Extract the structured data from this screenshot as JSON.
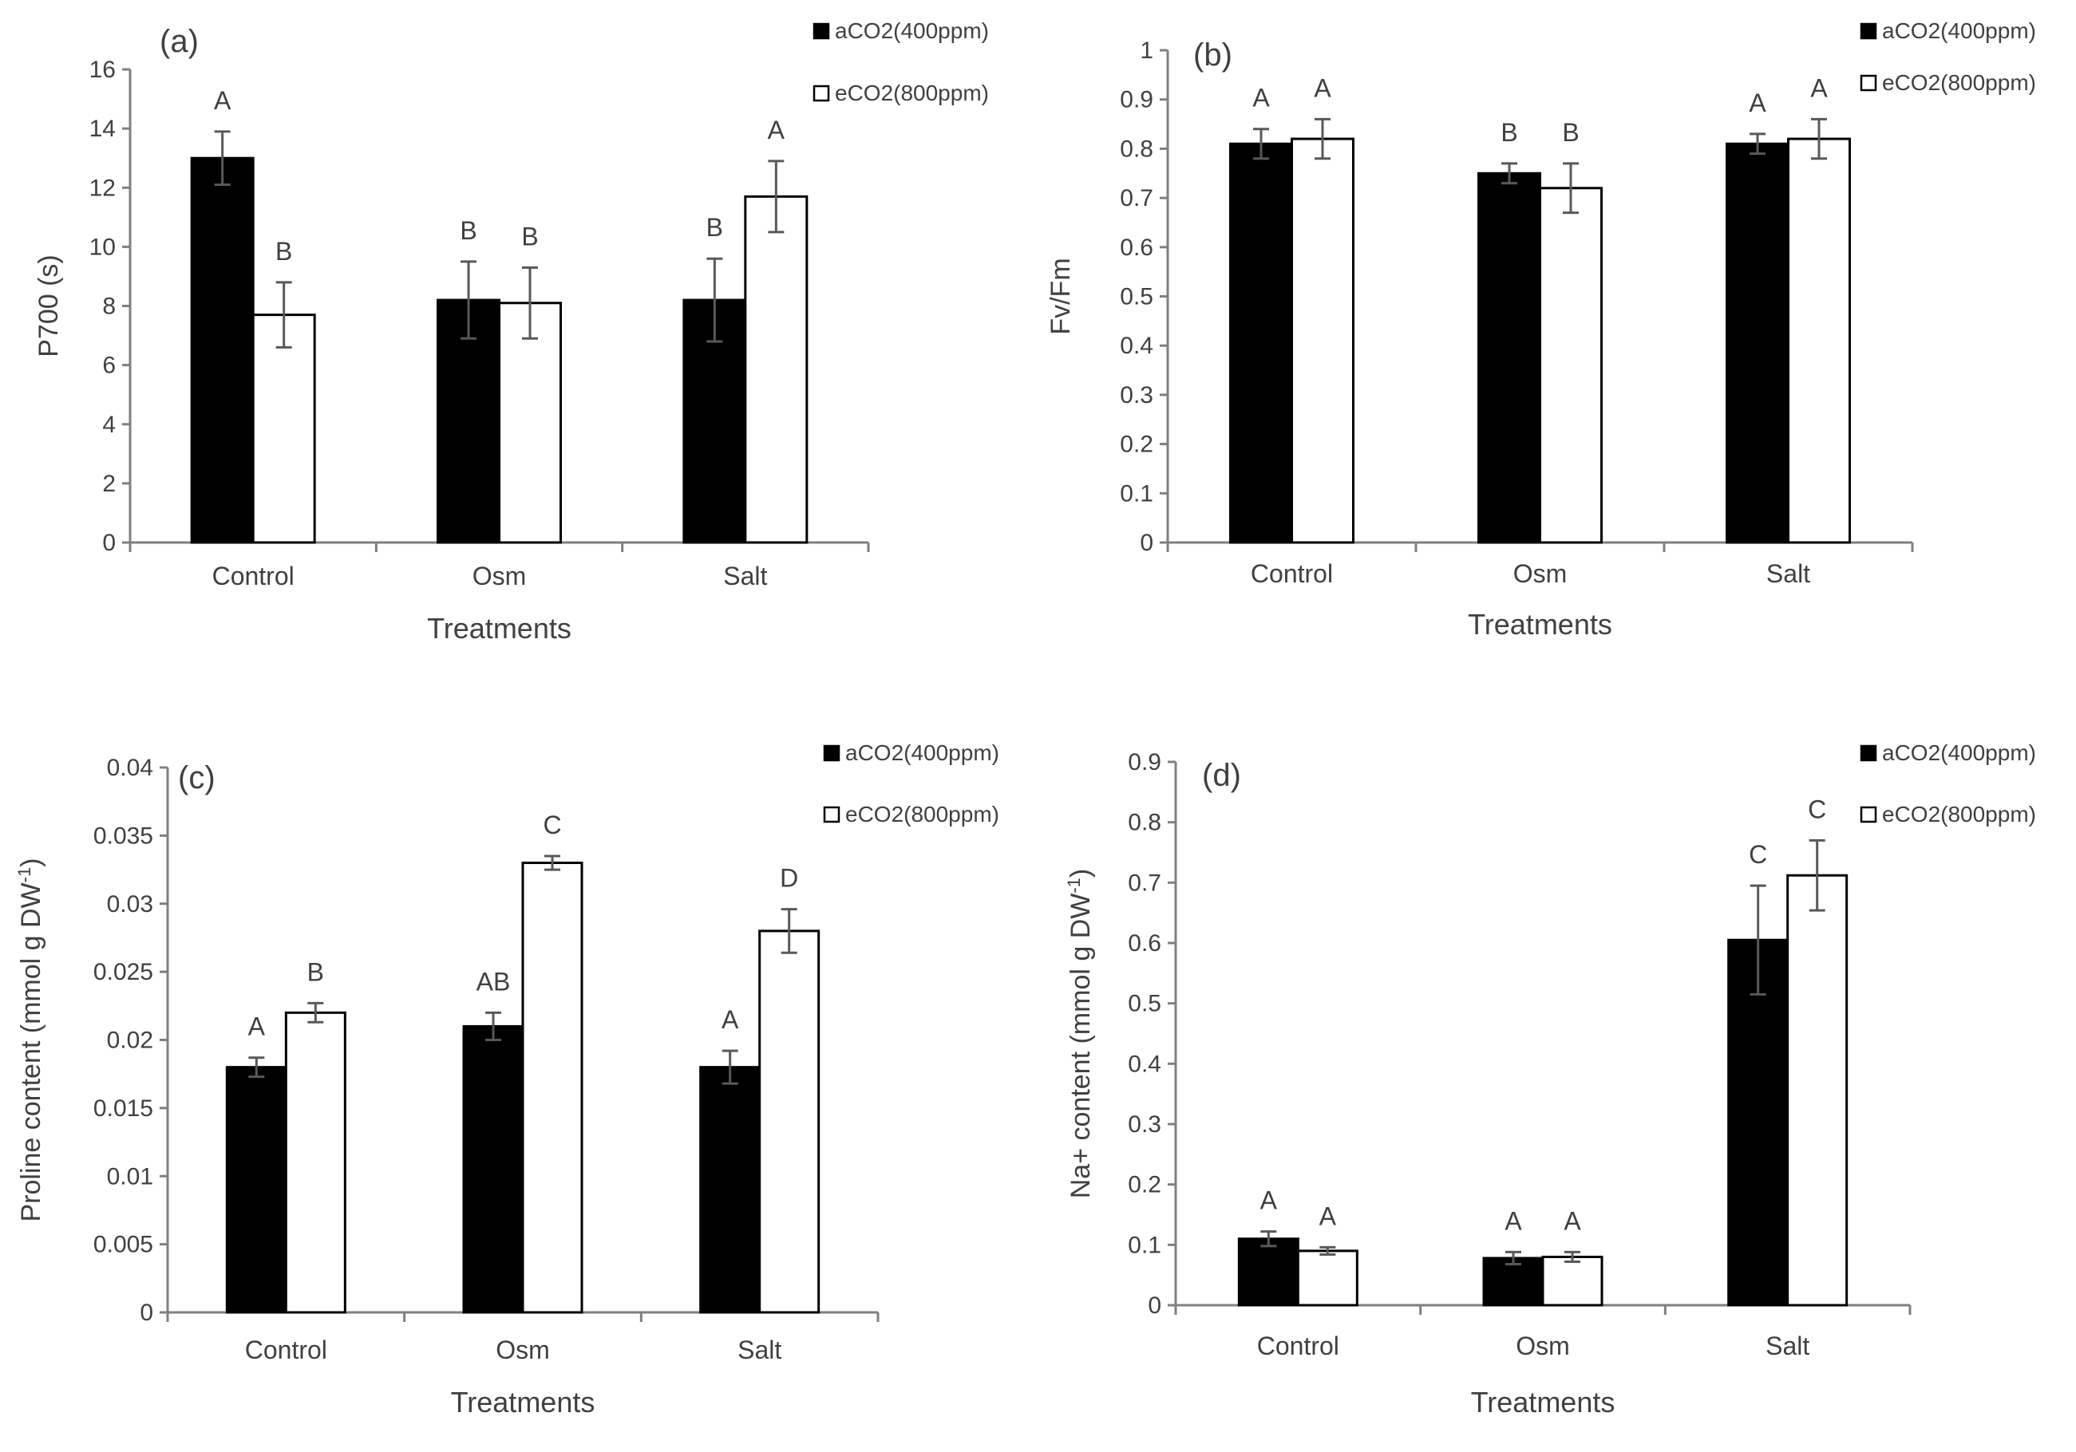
{
  "chart_data": [
    {
      "type": "bar",
      "panel_label": "(a)",
      "categories": [
        "Control",
        "Osm",
        "Salt"
      ],
      "series": [
        {
          "name": "aCO2(400ppm)",
          "color": "#000000",
          "values": [
            13.0,
            8.2,
            8.2
          ],
          "errors": [
            0.9,
            1.3,
            1.4
          ],
          "letters": [
            "A",
            "B",
            "B"
          ]
        },
        {
          "name": "eCO2(800ppm)",
          "color": "#ffffff",
          "values": [
            7.7,
            8.1,
            11.7
          ],
          "errors": [
            1.1,
            1.2,
            1.2
          ],
          "letters": [
            "B",
            "B",
            "A"
          ]
        }
      ],
      "ylabel": "P700 (s)",
      "xlabel": "Treatments",
      "ylim": [
        0,
        16
      ],
      "yticks": [
        "0",
        "2",
        "4",
        "6",
        "8",
        "10",
        "12",
        "14",
        "16"
      ],
      "legend_position": "top-right"
    },
    {
      "type": "bar",
      "panel_label": "(b)",
      "categories": [
        "Control",
        "Osm",
        "Salt"
      ],
      "series": [
        {
          "name": "aCO2(400ppm)",
          "color": "#000000",
          "values": [
            0.81,
            0.75,
            0.81
          ],
          "errors": [
            0.03,
            0.02,
            0.02
          ],
          "letters": [
            "A",
            "B",
            "A"
          ]
        },
        {
          "name": "eCO2(800ppm)",
          "color": "#ffffff",
          "values": [
            0.82,
            0.72,
            0.82
          ],
          "errors": [
            0.04,
            0.05,
            0.04
          ],
          "letters": [
            "A",
            "B",
            "A"
          ]
        }
      ],
      "ylabel": "Fv/Fm",
      "xlabel": "Treatments",
      "ylim": [
        0,
        1
      ],
      "yticks": [
        "0",
        "0.1",
        "0.2",
        "0.3",
        "0.4",
        "0.5",
        "0.6",
        "0.7",
        "0.8",
        "0.9",
        "1"
      ],
      "legend_position": "top-right"
    },
    {
      "type": "bar",
      "panel_label": "(c)",
      "categories": [
        "Control",
        "Osm",
        "Salt"
      ],
      "series": [
        {
          "name": "aCO2(400ppm)",
          "color": "#000000",
          "values": [
            0.018,
            0.021,
            0.018
          ],
          "errors": [
            0.0007,
            0.001,
            0.0012
          ],
          "letters": [
            "A",
            "AB",
            "A"
          ]
        },
        {
          "name": "eCO2(800ppm)",
          "color": "#ffffff",
          "values": [
            0.022,
            0.033,
            0.028
          ],
          "errors": [
            0.0007,
            0.0005,
            0.0016
          ],
          "letters": [
            "B",
            "C",
            "D"
          ]
        }
      ],
      "ylabel": "Proline content (mmol g DW",
      "ylabel_sup": "-1",
      "ylabel_end": ")",
      "xlabel": "Treatments",
      "ylim": [
        0,
        0.04
      ],
      "yticks": [
        "0",
        "0.005",
        "0.01",
        "0.015",
        "0.02",
        "0.025",
        "0.03",
        "0.035",
        "0.04"
      ],
      "legend_position": "top-right"
    },
    {
      "type": "bar",
      "panel_label": "(d)",
      "categories": [
        "Control",
        "Osm",
        "Salt"
      ],
      "series": [
        {
          "name": "aCO2(400ppm)",
          "color": "#000000",
          "values": [
            0.11,
            0.078,
            0.605
          ],
          "errors": [
            0.012,
            0.01,
            0.09
          ],
          "letters": [
            "A",
            "A",
            "C"
          ]
        },
        {
          "name": "eCO2(800ppm)",
          "color": "#ffffff",
          "values": [
            0.09,
            0.08,
            0.712
          ],
          "errors": [
            0.006,
            0.008,
            0.058
          ],
          "letters": [
            "A",
            "A",
            "C"
          ]
        }
      ],
      "ylabel": "Na+ content (mmol g DW",
      "ylabel_sup": "-1",
      "ylabel_end": ")",
      "xlabel": "Treatments",
      "ylim": [
        0,
        0.9
      ],
      "yticks": [
        "0",
        "0.1",
        "0.2",
        "0.3",
        "0.4",
        "0.5",
        "0.6",
        "0.7",
        "0.8",
        "0.9"
      ],
      "legend_position": "top-right"
    }
  ]
}
